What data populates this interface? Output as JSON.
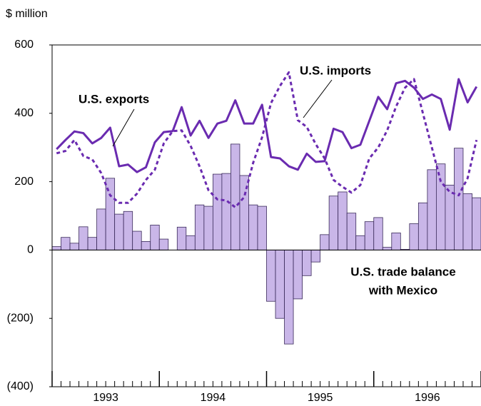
{
  "chart_data": {
    "type": "bar-line",
    "y_axis_label": "$ million",
    "ylim": [
      -400,
      600
    ],
    "yticks": [
      {
        "value": -400,
        "label": "(400)"
      },
      {
        "value": -200,
        "label": "(200)"
      },
      0,
      200,
      400,
      600
    ],
    "year_labels": [
      "1993",
      "1994",
      "1995",
      "1996"
    ],
    "categories": [
      null,
      null,
      null,
      null,
      null,
      null,
      null,
      null,
      null,
      null,
      null,
      null,
      null,
      null,
      null,
      null,
      null,
      null,
      null,
      null,
      null,
      null,
      null,
      null,
      null,
      null,
      null,
      null,
      null,
      null,
      null,
      null,
      null,
      null,
      null,
      null,
      null,
      null,
      null,
      null,
      null,
      null,
      null,
      null,
      null,
      null,
      null,
      null
    ],
    "series": [
      {
        "name": "U.S. trade balance with Mexico",
        "kind": "bar",
        "color": "#c9b6e8",
        "values": [
          10,
          37,
          20,
          68,
          37,
          120,
          210,
          105,
          113,
          55,
          25,
          73,
          32,
          0,
          67,
          42,
          132,
          128,
          222,
          224,
          310,
          218,
          132,
          128,
          -150,
          -200,
          -275,
          -143,
          -75,
          -35,
          45,
          158,
          170,
          108,
          42,
          83,
          95,
          8,
          50,
          2,
          77,
          138,
          235,
          252,
          190,
          298,
          165,
          153
        ]
      },
      {
        "name": "U.S. exports",
        "kind": "line",
        "color": "#6a2bb0",
        "values": [
          295,
          322,
          347,
          342,
          312,
          328,
          358,
          245,
          250,
          228,
          242,
          315,
          345,
          348,
          418,
          335,
          378,
          328,
          370,
          378,
          438,
          370,
          370,
          425,
          272,
          268,
          245,
          235,
          282,
          258,
          260,
          355,
          345,
          298,
          308,
          378,
          448,
          412,
          488,
          495,
          475,
          442,
          455,
          442,
          352,
          500,
          432,
          478
        ]
      },
      {
        "name": "U.S. imports",
        "kind": "dashed",
        "color": "#6a2bb0",
        "values": [
          283,
          290,
          322,
          275,
          265,
          225,
          160,
          138,
          138,
          165,
          205,
          235,
          312,
          348,
          350,
          305,
          245,
          175,
          148,
          145,
          125,
          155,
          255,
          330,
          430,
          480,
          520,
          380,
          360,
          310,
          268,
          205,
          185,
          168,
          190,
          268,
          300,
          350,
          420,
          475,
          500,
          400,
          300,
          200,
          170,
          160,
          210,
          322
        ]
      }
    ],
    "annotations": {
      "exports": "U.S. exports",
      "imports": "U.S. imports",
      "balance": [
        "U.S. trade balance",
        "with Mexico"
      ]
    }
  }
}
